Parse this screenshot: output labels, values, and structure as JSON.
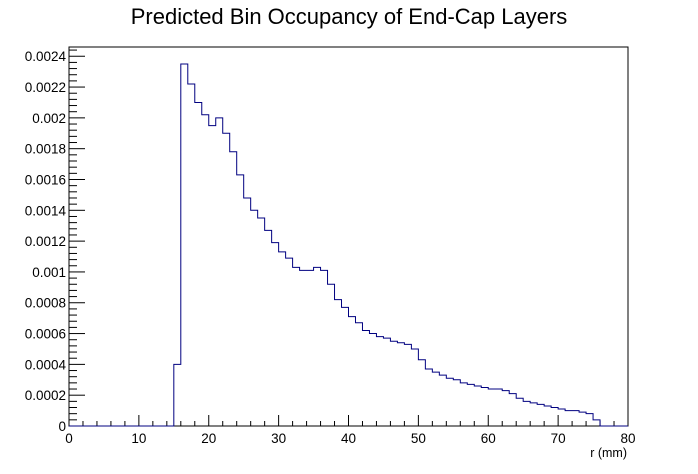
{
  "chart_data": {
    "type": "bar",
    "title": "Predicted Bin Occupancy of End-Cap Layers",
    "xlabel": "r (mm)",
    "ylabel": "",
    "xlim": [
      0,
      80
    ],
    "ylim": [
      0,
      0.00246
    ],
    "bin_width": 1,
    "x_ticks": [
      "0",
      "10",
      "20",
      "30",
      "40",
      "50",
      "60",
      "70",
      "80"
    ],
    "y_ticks": [
      "0",
      "0.0002",
      "0.0004",
      "0.0006",
      "0.0008",
      "0.001",
      "0.0012",
      "0.0014",
      "0.0016",
      "0.0018",
      "0.002",
      "0.0022",
      "0.0024"
    ],
    "line_color": "#000080",
    "grid": false,
    "values": [
      0,
      0,
      0,
      0,
      0,
      0,
      0,
      0,
      0,
      0,
      0,
      0,
      0,
      0,
      0,
      0.0004,
      0.00235,
      0.00222,
      0.0021,
      0.00202,
      0.00195,
      0.002,
      0.0019,
      0.00178,
      0.00163,
      0.00148,
      0.0014,
      0.00135,
      0.00127,
      0.00119,
      0.00113,
      0.00109,
      0.00103,
      0.00101,
      0.00101,
      0.00103,
      0.00101,
      0.00092,
      0.00082,
      0.00077,
      0.00071,
      0.00067,
      0.00062,
      0.0006,
      0.00058,
      0.00057,
      0.00055,
      0.00054,
      0.00053,
      0.0005,
      0.00043,
      0.00037,
      0.00035,
      0.00033,
      0.00031,
      0.0003,
      0.00028,
      0.00027,
      0.00026,
      0.00025,
      0.00024,
      0.00024,
      0.00023,
      0.00021,
      0.00018,
      0.00016,
      0.00015,
      0.00014,
      0.00013,
      0.00012,
      0.00011,
      0.0001,
      0.0001,
      9e-05,
      8e-05,
      4e-05,
      0,
      0,
      0,
      0
    ]
  }
}
